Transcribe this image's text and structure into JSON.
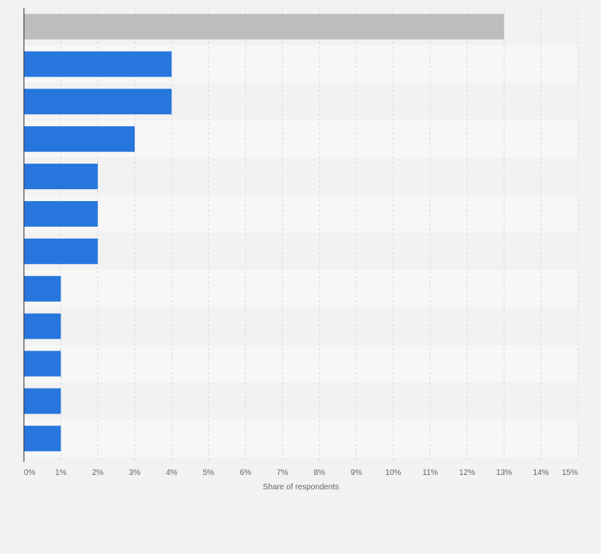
{
  "chart_data": {
    "type": "bar",
    "orientation": "horizontal",
    "title": "",
    "xlabel": "Share of respondents",
    "ylabel": "",
    "categories": [
      "",
      "",
      "",
      "",
      "",
      "",
      "",
      "",
      "",
      "",
      "",
      ""
    ],
    "values": [
      13,
      4,
      4,
      3,
      2,
      2,
      2,
      1,
      1,
      1,
      1,
      1
    ],
    "highlight_index": 0,
    "xlim": [
      0,
      15
    ],
    "ticks": [
      0,
      1,
      2,
      3,
      4,
      5,
      6,
      7,
      8,
      9,
      10,
      11,
      12,
      13,
      14,
      15
    ],
    "tick_labels": [
      "0%",
      "1%",
      "2%",
      "3%",
      "4%",
      "5%",
      "6%",
      "7%",
      "8%",
      "9%",
      "10%",
      "11%",
      "12%",
      "13%",
      "14%",
      "15%"
    ],
    "grid": true,
    "colors": {
      "bar": "#2776de",
      "highlight": "#bdbdbd",
      "band_light": "#f7f7f7",
      "band_dark": "#f2f2f2",
      "grid": "#d9d9d9",
      "axis": "#333333",
      "tick_text": "#666666"
    }
  }
}
